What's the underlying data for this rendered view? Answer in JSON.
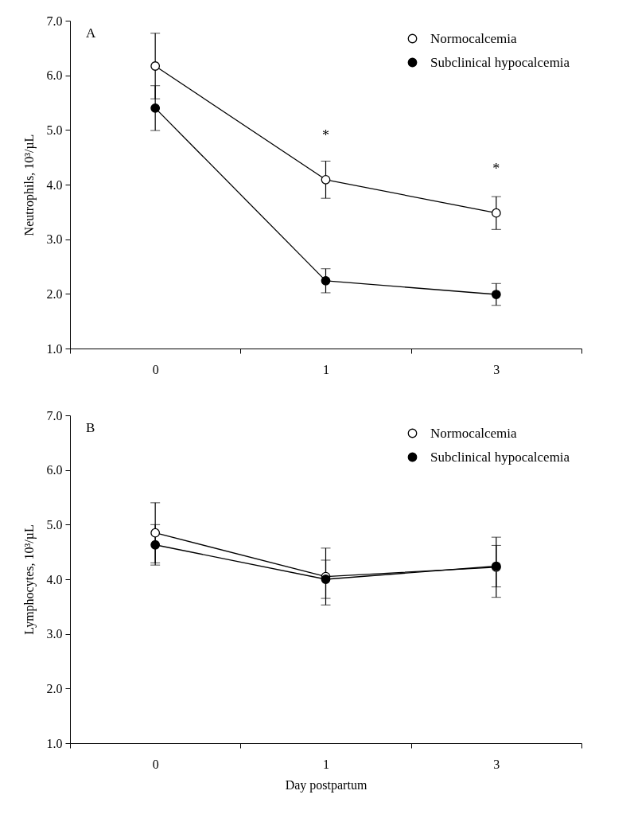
{
  "chart_data": [
    {
      "type": "line",
      "ylabel": "Neutrophils, 10³/µL",
      "categories": [
        "0",
        "1",
        "3"
      ],
      "series": [
        {
          "name": "Normocalcemia",
          "color": "#000000",
          "values": [
            6.17,
            4.09,
            3.48
          ],
          "errors": [
            0.6,
            0.34,
            0.3
          ]
        },
        {
          "name": "Subclinical hypocalcemia",
          "color": "#000000",
          "values": [
            5.4,
            2.24,
            1.99
          ],
          "errors": [
            0.41,
            0.22,
            0.2
          ]
        }
      ],
      "ylim": [
        1,
        7
      ],
      "yticks": [
        {
          "value": 1,
          "label": "1.0"
        },
        {
          "value": 2,
          "label": "2.0"
        },
        {
          "value": 3,
          "label": "3.0"
        },
        {
          "value": 4,
          "label": "4.0"
        },
        {
          "value": 5,
          "label": "5.0"
        },
        {
          "value": 6,
          "label": "6.0"
        },
        {
          "value": 7,
          "label": "7.0"
        }
      ],
      "annotations": [
        "A",
        {
          "text": "*",
          "x": "1",
          "y": 4.09
        },
        {
          "text": "*",
          "x": "3",
          "y": 3.48
        }
      ],
      "grid": false,
      "legend": "top right",
      "marker": "circle",
      "line_style": "solid"
    },
    {
      "type": "line",
      "ylabel": "Lymphocytes, 10³/µL",
      "xlabel": "Day postpartum",
      "categories": [
        "0",
        "1",
        "3"
      ],
      "series": [
        {
          "name": "Normocalcemia",
          "color": "#000000",
          "values": [
            4.85,
            4.05,
            4.22
          ],
          "errors": [
            0.55,
            0.52,
            0.55
          ]
        },
        {
          "name": "Subclinical hypocalcemia",
          "color": "#000000",
          "values": [
            4.63,
            4.0,
            4.24
          ],
          "errors": [
            0.37,
            0.35,
            0.38
          ]
        }
      ],
      "ylim": [
        1,
        7
      ],
      "yticks": [
        {
          "value": 1,
          "label": "1.0"
        },
        {
          "value": 2,
          "label": "2.0"
        },
        {
          "value": 3,
          "label": "3.0"
        },
        {
          "value": 4,
          "label": "4.0"
        },
        {
          "value": 5,
          "label": "5.0"
        },
        {
          "value": 6,
          "label": "6.0"
        },
        {
          "value": 7,
          "label": "7.0"
        }
      ],
      "annotations": [
        "B"
      ],
      "grid": false,
      "legend": "top right",
      "marker": "circle",
      "line_style": "solid"
    }
  ]
}
